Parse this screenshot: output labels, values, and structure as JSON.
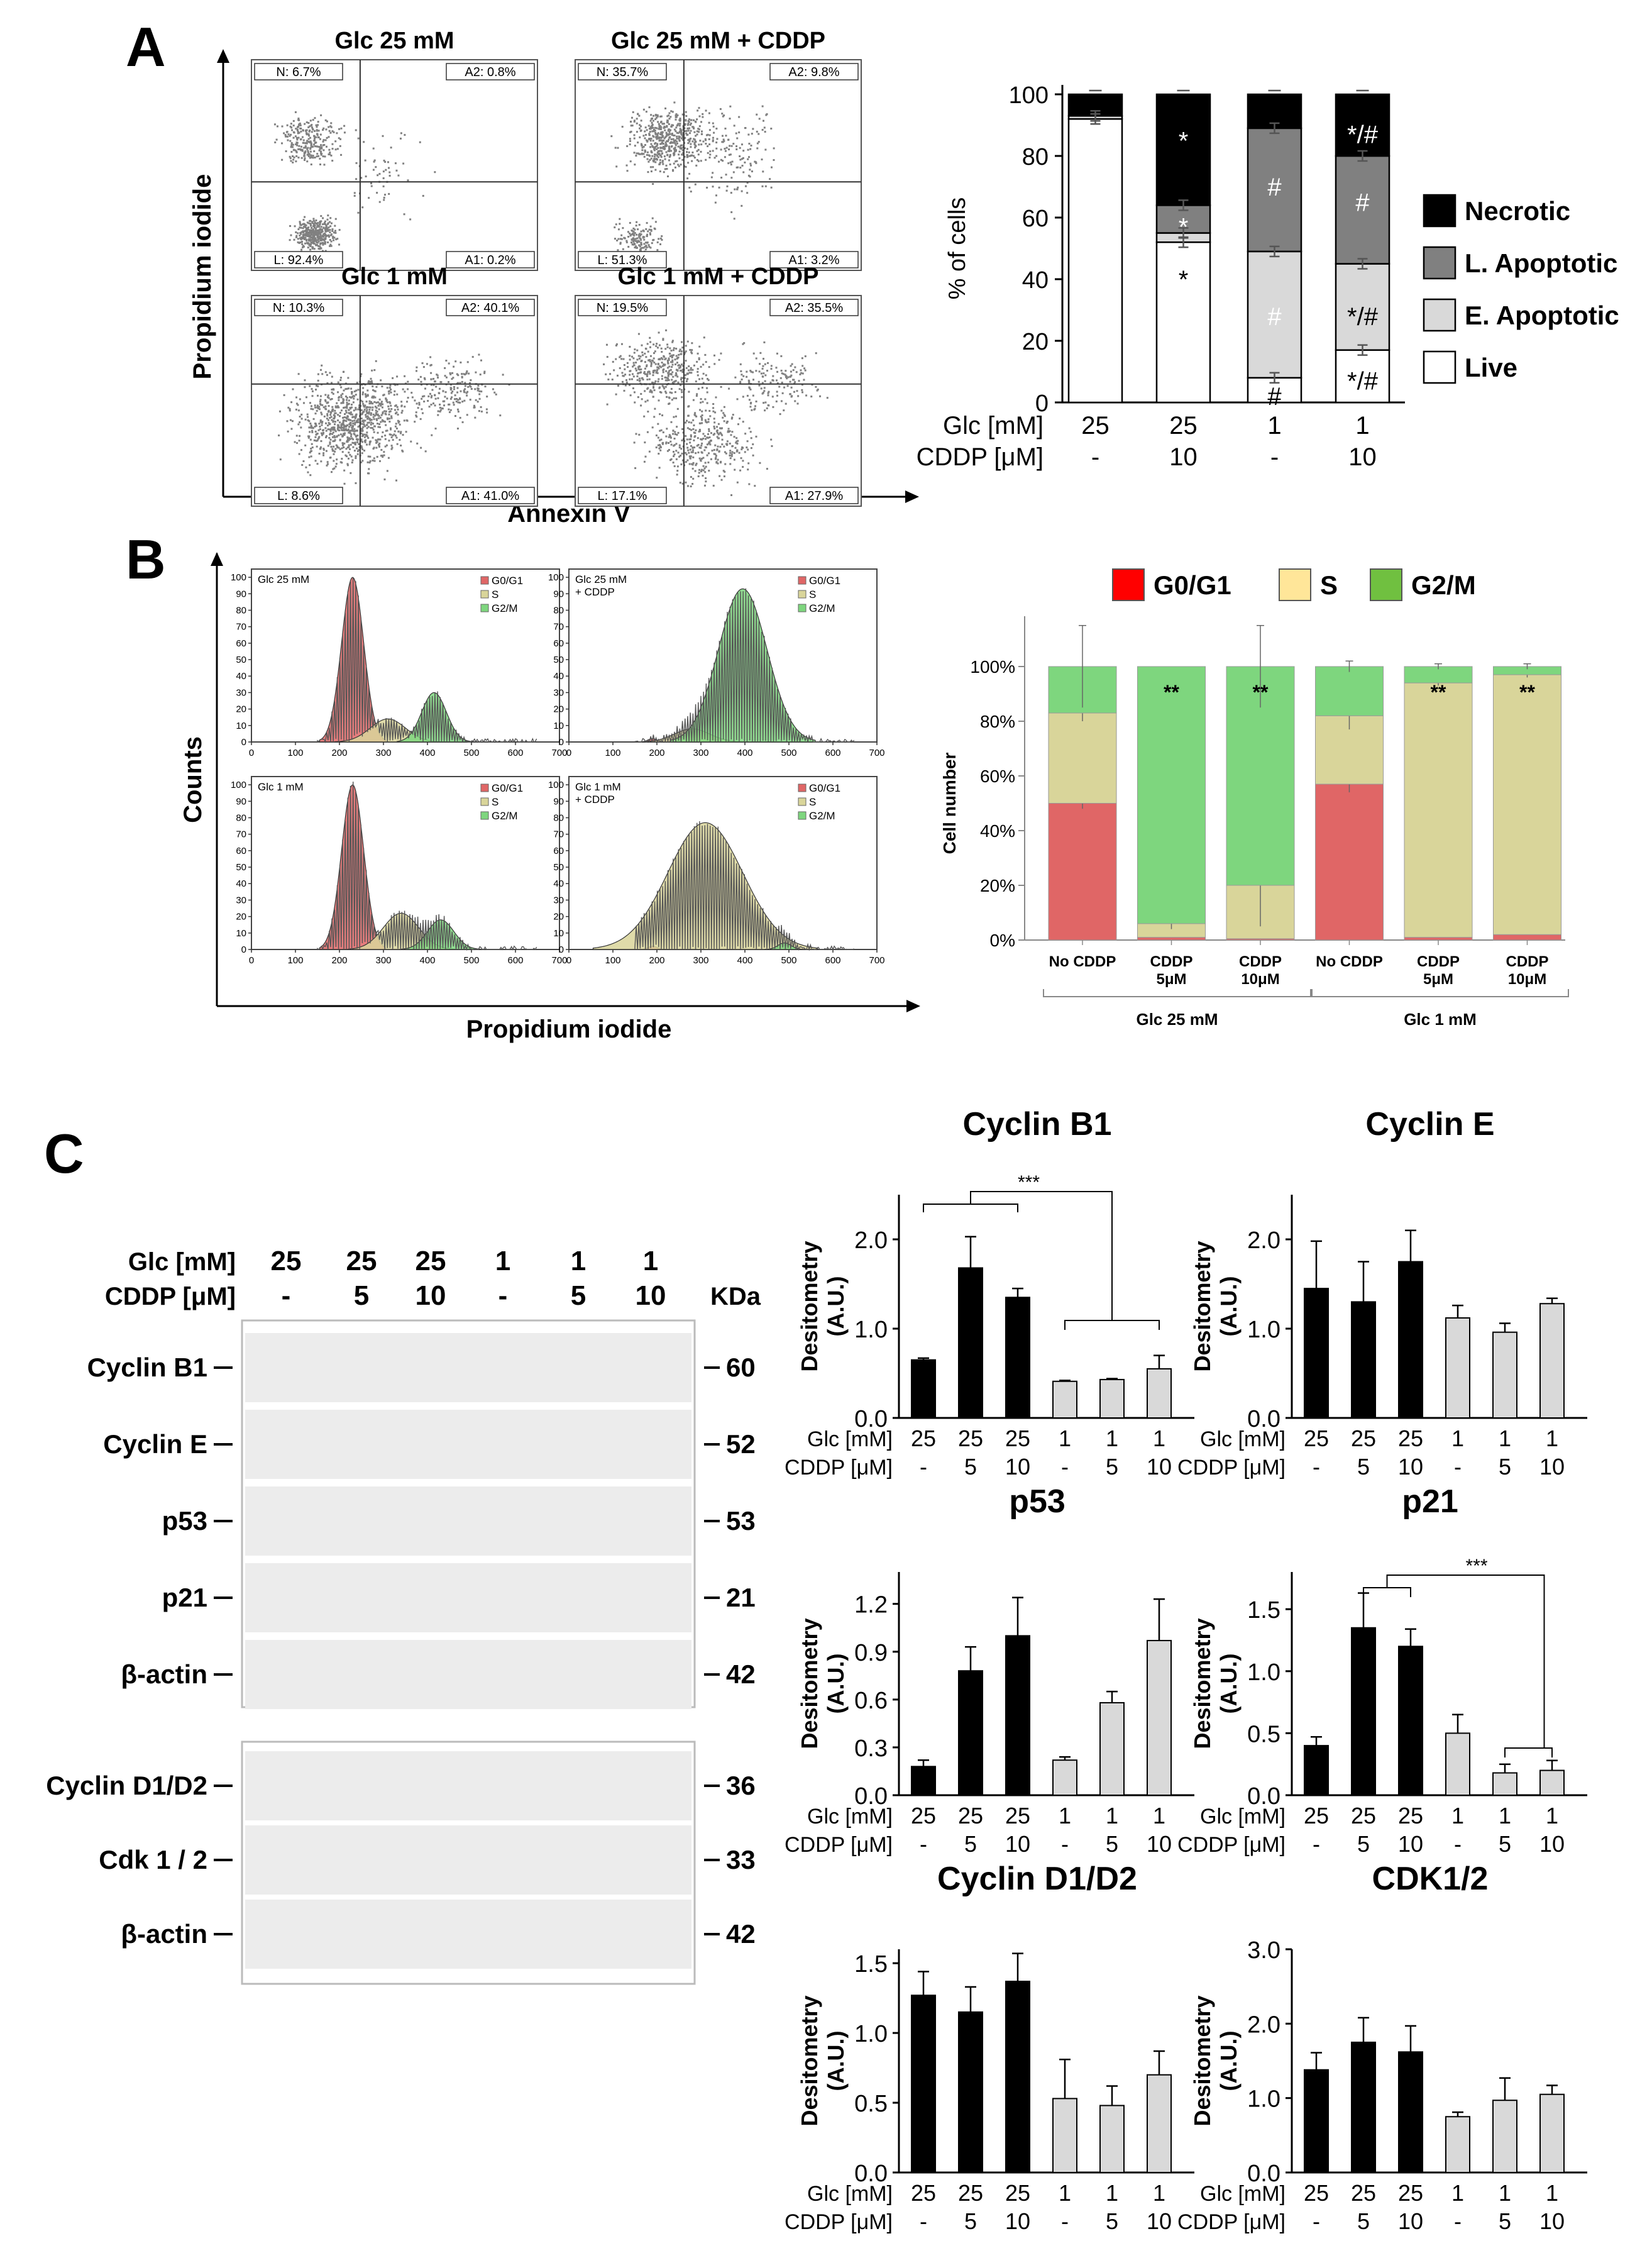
{
  "panels": {
    "A": "A",
    "B": "B",
    "C": "C"
  },
  "colors": {
    "necrotic": "#000000",
    "late_apoptotic": "#808080",
    "early_apoptotic": "#d9d9d9",
    "live": "#ffffff",
    "g0g1": "#e06666",
    "s": "#d9d59a",
    "g2m": "#7ed67e",
    "g0g1_legend": "#ff0000",
    "s_legend": "#ffe699",
    "g2m_legend": "#70c040",
    "bar_25": "#000000",
    "bar_1": "#d9d9d9"
  },
  "flow_cytometry": {
    "ylabel": "Propidium iodide",
    "xlabel": "Annexin V",
    "plots": [
      {
        "title": "Glc 25 mM",
        "N": "N: 6.7%",
        "A2": "A2: 0.8%",
        "L": "L: 92.4%",
        "A1": "A1: 0.2%"
      },
      {
        "title": "Glc 25 mM + CDDP",
        "N": "N: 35.7%",
        "A2": "A2: 9.8%",
        "L": "L: 51.3%",
        "A1": "A1: 3.2%"
      },
      {
        "title": "Glc 1 mM",
        "N": "N: 10.3%",
        "A2": "A2: 40.1%",
        "L": "L: 8.6%",
        "A1": "A1: 41.0%"
      },
      {
        "title": "Glc 1 mM + CDDP",
        "N": "N: 19.5%",
        "A2": "A2: 35.5%",
        "L": "L: 17.1%",
        "A1": "A1: 27.9%"
      }
    ]
  },
  "cell_cycle_histograms": {
    "ylabel": "Counts",
    "xlabel": "Propidium iodide",
    "xticks": [
      "0",
      "100",
      "200",
      "300",
      "400",
      "500",
      "600",
      "700"
    ],
    "yticks": [
      "0",
      "10",
      "20",
      "30",
      "40",
      "50",
      "60",
      "70",
      "80",
      "90",
      "100"
    ],
    "legend": [
      "G0/G1",
      "S",
      "G2/M"
    ],
    "plots": [
      {
        "title_line1": "Glc 25 mM",
        "title_line2": ""
      },
      {
        "title_line1": "Glc 25 mM",
        "title_line2": "+ CDDP"
      },
      {
        "title_line1": "Glc 1 mM",
        "title_line2": ""
      },
      {
        "title_line1": "Glc 1 mM",
        "title_line2": "+ CDDP"
      }
    ]
  },
  "western_blot": {
    "glc_label": "Glc [mM]",
    "cddp_label": "CDDP [μM]",
    "glc": [
      "25",
      "25",
      "25",
      "1",
      "1",
      "1"
    ],
    "cddp": [
      "-",
      "5",
      "10",
      "-",
      "5",
      "10"
    ],
    "kda_label": "KDa",
    "bands_upper": [
      {
        "name": "Cyclin B1",
        "kda": "60"
      },
      {
        "name": "Cyclin E",
        "kda": "52"
      },
      {
        "name": "p53",
        "kda": "53"
      },
      {
        "name": "p21",
        "kda": "21"
      },
      {
        "name": "β-actin",
        "kda": "42"
      }
    ],
    "bands_lower": [
      {
        "name": "Cyclin D1/D2",
        "kda": "36"
      },
      {
        "name": "Cdk 1 / 2",
        "kda": "33"
      },
      {
        "name": "β-actin",
        "kda": "42"
      }
    ]
  },
  "chart_data": [
    {
      "type": "bar",
      "stacked": true,
      "id": "A-viability",
      "ylabel": "% of cells",
      "ylim": [
        0,
        100
      ],
      "yticks": [
        0,
        20,
        40,
        60,
        80,
        100
      ],
      "row_labels": [
        "Glc [mM]",
        "CDDP [μM]"
      ],
      "glc": [
        "25",
        "25",
        "1",
        "1"
      ],
      "cddp": [
        "-",
        "10",
        "-",
        "10"
      ],
      "series": [
        {
          "name": "Live",
          "values": [
            92,
            52,
            8,
            17
          ]
        },
        {
          "name": "E. Apoptotic",
          "values": [
            1,
            3,
            41,
            28
          ]
        },
        {
          "name": "L. Apoptotic",
          "values": [
            0,
            9,
            40,
            35
          ]
        },
        {
          "name": "Necrotic",
          "values": [
            7,
            36,
            11,
            20
          ]
        }
      ],
      "annotations": [
        [
          "",
          "",
          "",
          ""
        ],
        [
          "*",
          "*",
          "*",
          ""
        ],
        [
          "",
          "",
          "#",
          "*/#"
        ],
        [
          "",
          "",
          "#",
          "*/#"
        ],
        [
          "",
          "",
          "#",
          "#"
        ],
        [
          "",
          "",
          "",
          "*/#"
        ]
      ]
    },
    {
      "type": "bar",
      "stacked": true,
      "id": "B-cellcycle",
      "ylabel": "Cell number",
      "ylim": [
        0,
        100
      ],
      "yticks": [
        "0%",
        "20%",
        "40%",
        "60%",
        "80%",
        "100%"
      ],
      "categories": [
        {
          "line1": "No CDDP",
          "line2": ""
        },
        {
          "line1": "CDDP",
          "line2": "5μM"
        },
        {
          "line1": "CDDP",
          "line2": "10μM"
        },
        {
          "line1": "No CDDP",
          "line2": ""
        },
        {
          "line1": "CDDP",
          "line2": "5μM"
        },
        {
          "line1": "CDDP",
          "line2": "10μM"
        }
      ],
      "groups": [
        "Glc 25 mM",
        "Glc 1 mM"
      ],
      "legend": [
        "G0/G1",
        "S",
        "G2/M"
      ],
      "series": [
        {
          "name": "G0/G1",
          "values": [
            50,
            1,
            0.5,
            57,
            1,
            2
          ]
        },
        {
          "name": "S",
          "values": [
            33,
            5,
            19.5,
            25,
            93,
            95
          ]
        },
        {
          "name": "G2/M",
          "values": [
            17,
            94,
            80,
            18,
            6,
            3
          ]
        }
      ],
      "significance": [
        "",
        "**",
        "**",
        "",
        "**",
        "**"
      ]
    },
    {
      "type": "bar",
      "id": "C-cyclinB1",
      "title": "Cyclin B1",
      "ylabel": "Desitometry (A.U.)",
      "ylim": [
        0,
        2.5
      ],
      "yticks": [
        "0.0",
        "1.0",
        "2.0"
      ],
      "ytick_values": [
        0,
        1,
        2
      ],
      "values": [
        0.65,
        1.68,
        1.35,
        0.41,
        0.43,
        0.55
      ],
      "errors": [
        0.02,
        0.35,
        0.1,
        0.01,
        0.01,
        0.15
      ],
      "significance": "***"
    },
    {
      "type": "bar",
      "id": "C-cyclinE",
      "title": "Cyclin E",
      "ylabel": "Desitometry (A.U.)",
      "ylim": [
        0,
        2.5
      ],
      "yticks": [
        "0.0",
        "1.0",
        "2.0"
      ],
      "ytick_values": [
        0,
        1,
        2
      ],
      "values": [
        1.45,
        1.3,
        1.75,
        1.12,
        0.96,
        1.28
      ],
      "errors": [
        0.53,
        0.45,
        0.35,
        0.14,
        0.1,
        0.06
      ]
    },
    {
      "type": "bar",
      "id": "C-p53",
      "title": "p53",
      "ylabel": "Desitometry (A.U.)",
      "ylim": [
        0,
        1.4
      ],
      "yticks": [
        "0.0",
        "0.3",
        "0.6",
        "0.9",
        "1.2"
      ],
      "ytick_values": [
        0,
        0.3,
        0.6,
        0.9,
        1.2
      ],
      "values": [
        0.18,
        0.78,
        1.0,
        0.22,
        0.58,
        0.97
      ],
      "errors": [
        0.04,
        0.15,
        0.24,
        0.02,
        0.07,
        0.26
      ]
    },
    {
      "type": "bar",
      "id": "C-p21",
      "title": "p21",
      "ylabel": "Desitometry (A.U.)",
      "ylim": [
        0,
        1.8
      ],
      "yticks": [
        "0.0",
        "0.5",
        "1.0",
        "1.5"
      ],
      "ytick_values": [
        0,
        0.5,
        1.0,
        1.5
      ],
      "values": [
        0.4,
        1.35,
        1.2,
        0.5,
        0.18,
        0.2
      ],
      "errors": [
        0.07,
        0.28,
        0.14,
        0.15,
        0.07,
        0.08
      ],
      "significance": "***"
    },
    {
      "type": "bar",
      "id": "C-cyclinD",
      "title": "Cyclin D1/D2",
      "ylabel": "Desitometry (A.U.)",
      "ylim": [
        0,
        1.6
      ],
      "yticks": [
        "0.0",
        "0.5",
        "1.0",
        "1.5"
      ],
      "ytick_values": [
        0,
        0.5,
        1.0,
        1.5
      ],
      "values": [
        1.27,
        1.15,
        1.37,
        0.53,
        0.48,
        0.7
      ],
      "errors": [
        0.17,
        0.18,
        0.2,
        0.28,
        0.14,
        0.17
      ]
    },
    {
      "type": "bar",
      "id": "C-cdk12",
      "title": "CDK1/2",
      "ylabel": "Desitometry (A.U.)",
      "ylim": [
        0,
        3.0
      ],
      "yticks": [
        "0.0",
        "1.0",
        "2.0",
        "3.0"
      ],
      "ytick_values": [
        0,
        1,
        2,
        3
      ],
      "values": [
        1.38,
        1.75,
        1.62,
        0.75,
        0.97,
        1.05
      ],
      "errors": [
        0.23,
        0.33,
        0.35,
        0.06,
        0.3,
        0.12
      ]
    }
  ]
}
